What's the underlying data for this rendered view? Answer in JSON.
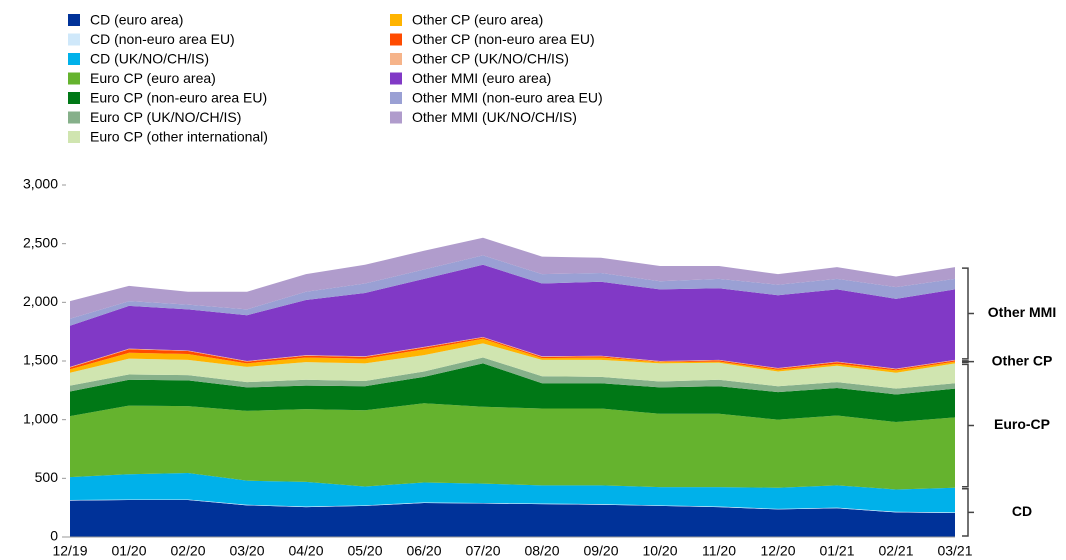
{
  "chart_data": {
    "type": "stacked_area",
    "categories": [
      "12/19",
      "01/20",
      "02/20",
      "03/20",
      "04/20",
      "05/20",
      "06/20",
      "07/20",
      "08/20",
      "09/20",
      "10/20",
      "11/20",
      "12/20",
      "01/21",
      "02/21",
      "03/21"
    ],
    "series": [
      {
        "name": "CD (euro area)",
        "color": "#003299",
        "values": [
          310,
          315,
          315,
          270,
          255,
          265,
          290,
          285,
          280,
          275,
          265,
          255,
          235,
          245,
          210,
          205
        ]
      },
      {
        "name": "CD (non-euro area EU)",
        "color": "#cfe8fa",
        "values": [
          5,
          5,
          5,
          5,
          5,
          5,
          5,
          5,
          5,
          5,
          5,
          5,
          5,
          5,
          5,
          5
        ]
      },
      {
        "name": "CD (UK/NO/CH/IS)",
        "color": "#00b1ea",
        "values": [
          195,
          215,
          225,
          205,
          210,
          160,
          170,
          165,
          155,
          160,
          155,
          165,
          180,
          190,
          190,
          210
        ]
      },
      {
        "name": "Euro CP (euro area)",
        "color": "#65b32e",
        "values": [
          520,
          585,
          570,
          595,
          620,
          650,
          675,
          655,
          655,
          655,
          625,
          625,
          580,
          595,
          575,
          600
        ]
      },
      {
        "name": "Euro CP (non-euro area EU)",
        "color": "#007816",
        "values": [
          210,
          220,
          220,
          200,
          200,
          205,
          225,
          370,
          215,
          215,
          225,
          235,
          235,
          235,
          235,
          245
        ]
      },
      {
        "name": "Euro CP (UK/NO/CH/IS)",
        "color": "#86b08a",
        "values": [
          50,
          45,
          45,
          45,
          50,
          45,
          45,
          50,
          60,
          55,
          50,
          55,
          50,
          50,
          50,
          45
        ]
      },
      {
        "name": "Euro CP (other international)",
        "color": "#d0e5b0",
        "values": [
          110,
          135,
          130,
          130,
          150,
          150,
          140,
          120,
          140,
          145,
          155,
          145,
          125,
          140,
          135,
          170
        ]
      },
      {
        "name": "Other CP (euro area)",
        "color": "#ffb400",
        "values": [
          30,
          50,
          50,
          30,
          40,
          40,
          50,
          40,
          15,
          20,
          10,
          10,
          15,
          15,
          20,
          15
        ]
      },
      {
        "name": "Other CP (non-euro area EU)",
        "color": "#ff4b00",
        "values": [
          15,
          30,
          25,
          15,
          15,
          15,
          15,
          10,
          10,
          10,
          5,
          10,
          10,
          15,
          10,
          10
        ]
      },
      {
        "name": "Other CP (UK/NO/CH/IS)",
        "color": "#f6b48a",
        "values": [
          5,
          5,
          5,
          5,
          5,
          5,
          5,
          5,
          5,
          5,
          5,
          5,
          5,
          5,
          5,
          5
        ]
      },
      {
        "name": "Other MMI (euro area)",
        "color": "#8139c6",
        "values": [
          350,
          365,
          350,
          390,
          470,
          540,
          580,
          615,
          620,
          630,
          610,
          610,
          620,
          615,
          595,
          600
        ]
      },
      {
        "name": "Other MMI (non-euro area EU)",
        "color": "#9aa0d4",
        "values": [
          60,
          40,
          40,
          50,
          70,
          80,
          80,
          80,
          80,
          75,
          70,
          80,
          90,
          90,
          100,
          90
        ]
      },
      {
        "name": "Other MMI (UK/NO/CH/IS)",
        "color": "#b09ccc",
        "values": [
          150,
          130,
          110,
          150,
          150,
          160,
          160,
          150,
          150,
          130,
          130,
          110,
          90,
          100,
          90,
          100
        ]
      }
    ],
    "ylim": [
      0,
      3000
    ],
    "yticks": [
      0,
      {
        "value": 500,
        "label": "500"
      },
      {
        "value": 1000,
        "label": "1,000"
      },
      {
        "value": 1500,
        "label": "1,500"
      },
      {
        "value": 2000,
        "label": "2,000"
      },
      {
        "value": 2500,
        "label": "2,500"
      },
      {
        "value": 3000,
        "label": "3,000"
      }
    ],
    "annotations": [
      "CD",
      "Euro-CP",
      "Other CP",
      "Other MMI"
    ],
    "legend": "top-left"
  }
}
